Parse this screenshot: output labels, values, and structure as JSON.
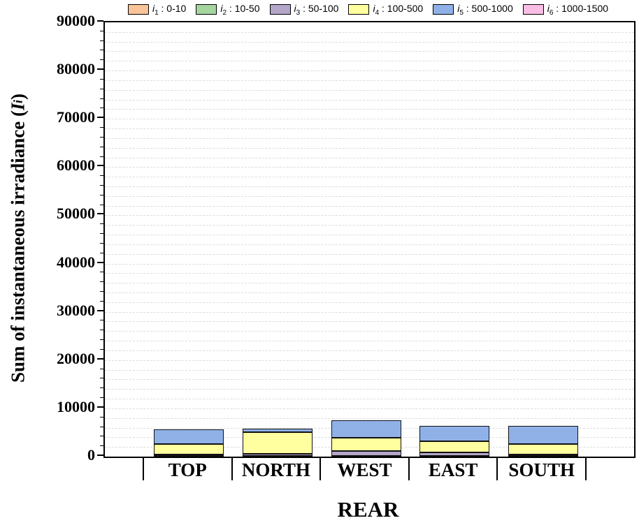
{
  "legend": {
    "separator": " : ",
    "items": [
      {
        "var": "i",
        "sub": "1",
        "range": "0-10",
        "color": "#F8C498"
      },
      {
        "var": "i",
        "sub": "2",
        "range": "10-50",
        "color": "#A5D6A0"
      },
      {
        "var": "i",
        "sub": "3",
        "range": "50-100",
        "color": "#B3A6C9"
      },
      {
        "var": "i",
        "sub": "4",
        "range": "100-500",
        "color": "#FFFFA0"
      },
      {
        "var": "i",
        "sub": "5",
        "range": "500-1000",
        "color": "#8FB1E8"
      },
      {
        "var": "i",
        "sub": "6",
        "range": "1000-1500",
        "color": "#FABDE5"
      }
    ]
  },
  "y_axis": {
    "title_prefix": "Sum of instantaneous irradiance (",
    "title_var": "I",
    "title_sub": "i",
    "title_suffix": ")",
    "ticks": [
      0,
      10000,
      20000,
      30000,
      40000,
      50000,
      60000,
      70000,
      80000,
      90000
    ]
  },
  "x_axis": {
    "label": "REAR",
    "categories": [
      "TOP",
      "NORTH",
      "WEST",
      "EAST",
      "SOUTH"
    ]
  },
  "chart_data": {
    "type": "bar",
    "stacked": true,
    "title": "",
    "xlabel": "REAR",
    "ylabel": "Sum of instantaneous irradiance (I_i)",
    "ylim": [
      0,
      90000
    ],
    "ytick_step": 10000,
    "minor_gridline_step": 2000,
    "grid": "horizontal dashed minor gridlines",
    "legend_position": "top",
    "categories": [
      "TOP",
      "NORTH",
      "WEST",
      "EAST",
      "SOUTH"
    ],
    "series": [
      {
        "name": "i1 : 0-10",
        "color": "#F8C498",
        "values": [
          60,
          50,
          100,
          60,
          50
        ]
      },
      {
        "name": "i2 : 10-50",
        "color": "#A5D6A0",
        "values": [
          60,
          50,
          100,
          60,
          50
        ]
      },
      {
        "name": "i3 : 50-100",
        "color": "#B3A6C9",
        "values": [
          300,
          500,
          1000,
          700,
          330
        ]
      },
      {
        "name": "i4 : 100-500",
        "color": "#FFFFA0",
        "values": [
          2200,
          4400,
          2700,
          2400,
          2200
        ]
      },
      {
        "name": "i5 : 500-1000",
        "color": "#8FB1E8",
        "values": [
          3050,
          750,
          3600,
          3100,
          3750
        ]
      },
      {
        "name": "i6 : 1000-1500",
        "color": "#FABDE5",
        "values": [
          0,
          0,
          0,
          0,
          0
        ]
      }
    ]
  }
}
